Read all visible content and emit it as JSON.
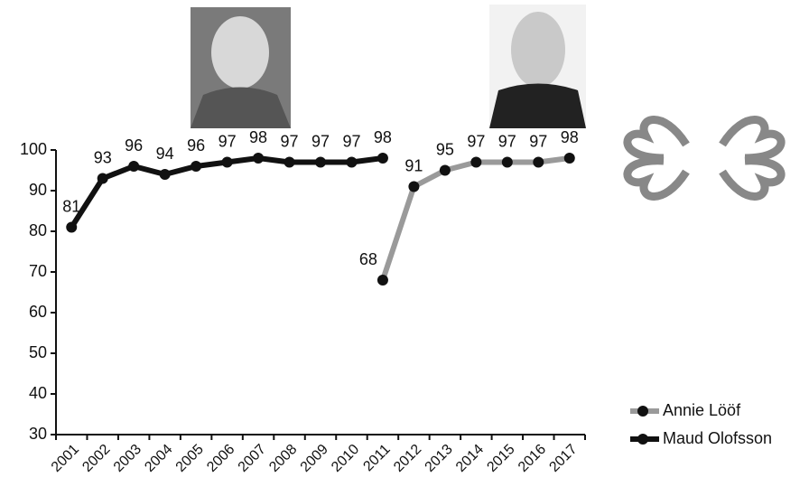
{
  "chart_data": {
    "type": "line",
    "categories": [
      "2001",
      "2002",
      "2003",
      "2004",
      "2005",
      "2006",
      "2007",
      "2008",
      "2009",
      "2010",
      "2011",
      "2012",
      "2013",
      "2014",
      "2015",
      "2016",
      "2017"
    ],
    "series": [
      {
        "name": "Annie Lööf",
        "color": "#9a9a9a",
        "values": [
          null,
          null,
          null,
          null,
          null,
          null,
          null,
          null,
          null,
          null,
          68,
          91,
          95,
          97,
          97,
          97,
          98
        ]
      },
      {
        "name": "Maud Olofsson",
        "color": "#111111",
        "values": [
          81,
          93,
          96,
          94,
          96,
          97,
          98,
          97,
          97,
          97,
          98,
          null,
          null,
          null,
          null,
          null,
          null
        ]
      }
    ],
    "ylim": [
      30,
      100
    ],
    "yticks": [
      30,
      40,
      50,
      60,
      70,
      80,
      90,
      100
    ],
    "grid": false,
    "legend": "bottom-right"
  }
}
